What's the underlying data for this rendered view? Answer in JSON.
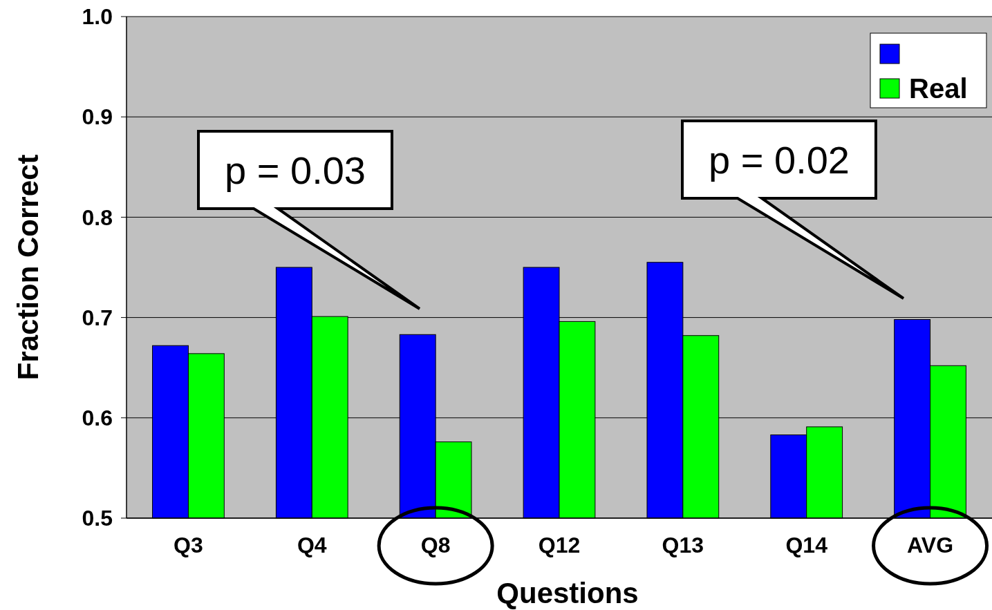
{
  "chart_data": {
    "type": "bar",
    "xlabel": "Questions",
    "ylabel": "Fraction Correct",
    "categories": [
      "Q3",
      "Q4",
      "Q8",
      "Q12",
      "Q13",
      "Q14",
      "AVG"
    ],
    "series": [
      {
        "color": "#0000ff",
        "values": [
          0.672,
          0.75,
          0.683,
          0.75,
          0.755,
          0.583,
          0.698
        ]
      },
      {
        "name": "Real",
        "color": "#00ff00",
        "values": [
          0.664,
          0.701,
          0.576,
          0.696,
          0.682,
          0.591,
          0.652
        ]
      }
    ],
    "ylim": [
      0.5,
      1.0
    ],
    "yticks": [
      0.5,
      0.6,
      0.7,
      0.8,
      0.9,
      {
        "value": 1.0,
        "label": "1.0"
      }
    ],
    "grid": "y",
    "legend": "top right",
    "annotations": [
      "p = 0.03",
      "p = 0.02"
    ]
  }
}
